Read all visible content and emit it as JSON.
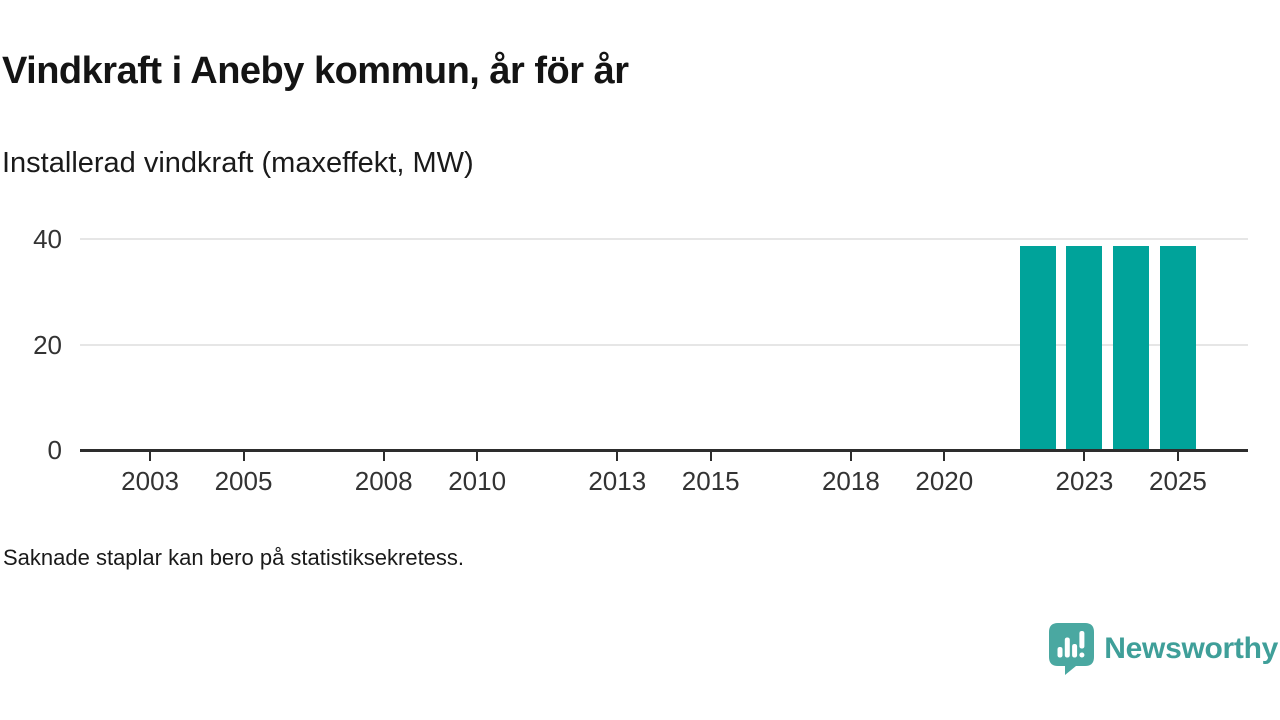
{
  "header": {
    "title": "Vindkraft i Aneby kommun, år för år",
    "subtitle": "Installerad vindkraft (maxeffekt, MW)"
  },
  "chart_data": {
    "type": "bar",
    "title": "Vindkraft i Aneby kommun, år för år",
    "subtitle": "Installerad vindkraft (maxeffekt, MW)",
    "unit": "MW",
    "categories": [
      2002,
      2003,
      2004,
      2005,
      2006,
      2007,
      2008,
      2009,
      2010,
      2011,
      2012,
      2013,
      2014,
      2015,
      2016,
      2017,
      2018,
      2019,
      2020,
      2021,
      2022,
      2023,
      2024,
      2025
    ],
    "values": [
      null,
      null,
      null,
      null,
      null,
      null,
      null,
      null,
      null,
      null,
      null,
      null,
      null,
      null,
      null,
      null,
      null,
      null,
      null,
      null,
      38.6,
      38.6,
      38.6,
      38.6
    ],
    "x_domain": [
      2002,
      2026
    ],
    "x_ticks": [
      2003,
      2005,
      2008,
      2010,
      2013,
      2015,
      2018,
      2020,
      2023,
      2025
    ],
    "y_ticks": [
      0,
      20,
      40
    ],
    "gridlines": [
      20,
      40
    ],
    "ylim": [
      0,
      42
    ],
    "grid": "horizontal-only",
    "legend": "none",
    "bar_color": "#00a39a",
    "axis_color": "#2d2d2d",
    "gridline_color": "#e6e6e6",
    "tick_label_color": "#333333"
  },
  "footnote": {
    "text": "Saknade staplar kan bero på statistiksekretess."
  },
  "branding": {
    "name": "Newsworthy",
    "logo_icon": "newsworthy-speech-bubble-bar-chart-icon",
    "wordmark_color": "#3f9f99",
    "icon_color": "#4aa8a1"
  }
}
